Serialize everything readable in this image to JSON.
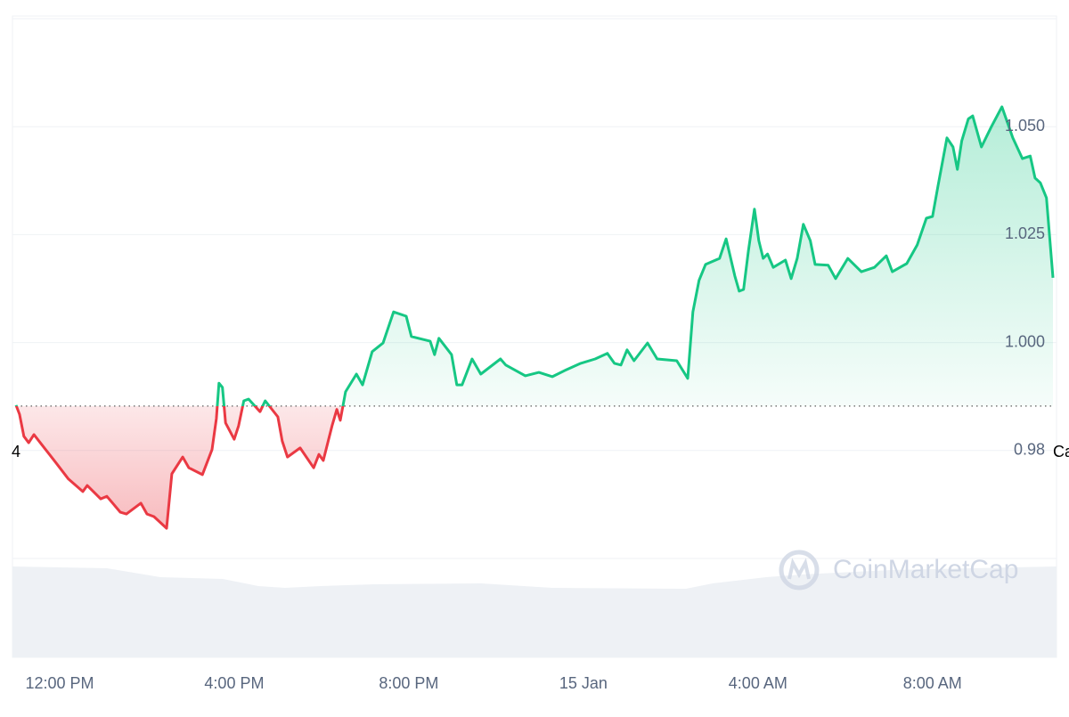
{
  "chart_data": {
    "type": "line",
    "x": [
      -1.0,
      -0.92,
      -0.82,
      -0.71,
      -0.59,
      -0.35,
      -0.08,
      0.2,
      0.53,
      0.63,
      0.94,
      1.08,
      1.39,
      1.53,
      1.86,
      2.0,
      2.16,
      2.45,
      2.57,
      2.82,
      2.96,
      3.27,
      3.49,
      3.59,
      3.65,
      3.73,
      3.8,
      4.0,
      4.1,
      4.22,
      4.33,
      4.59,
      4.71,
      5.0,
      5.1,
      5.22,
      5.51,
      5.82,
      5.94,
      6.04,
      6.24,
      6.35,
      6.43,
      6.55,
      6.8,
      6.94,
      7.16,
      7.41,
      7.65,
      7.94,
      8.06,
      8.49,
      8.59,
      8.69,
      8.98,
      9.1,
      9.22,
      9.45,
      9.65,
      10.1,
      10.22,
      10.67,
      10.98,
      11.29,
      11.61,
      11.94,
      12.27,
      12.55,
      12.71,
      12.86,
      13.0,
      13.16,
      13.47,
      13.69,
      14.14,
      14.39,
      14.51,
      14.65,
      14.8,
      15.12,
      15.27,
      15.47,
      15.57,
      15.67,
      15.78,
      15.92,
      16.02,
      16.12,
      16.22,
      16.35,
      16.63,
      16.76,
      16.9,
      17.04,
      17.2,
      17.31,
      17.61,
      17.78,
      18.06,
      18.37,
      18.67,
      18.94,
      19.08,
      19.41,
      19.65,
      19.86,
      20.0,
      20.12,
      20.33,
      20.47,
      20.57,
      20.67,
      20.82,
      20.92,
      21.12,
      21.35,
      21.59,
      21.84,
      22.06,
      22.24,
      22.35,
      22.47,
      22.61,
      22.76
    ],
    "values": [
      0.9855,
      0.9834,
      0.9783,
      0.9768,
      0.9787,
      0.9756,
      0.9721,
      0.9684,
      0.9655,
      0.9669,
      0.9638,
      0.9644,
      0.9607,
      0.9603,
      0.9628,
      0.9603,
      0.9597,
      0.957,
      0.9696,
      0.9735,
      0.971,
      0.9694,
      0.9752,
      0.9824,
      0.9906,
      0.9896,
      0.9814,
      0.9776,
      0.9807,
      0.9865,
      0.9869,
      0.984,
      0.9865,
      0.9828,
      0.9772,
      0.9735,
      0.9756,
      0.971,
      0.9741,
      0.9727,
      0.9807,
      0.9845,
      0.982,
      0.9886,
      0.9927,
      0.9902,
      0.9979,
      0.9999,
      1.0071,
      1.0061,
      1.0014,
      1.0003,
      0.9972,
      1.001,
      0.9972,
      0.9902,
      0.9902,
      0.9962,
      0.9927,
      0.9962,
      0.9948,
      0.9923,
      0.9931,
      0.9921,
      0.9937,
      0.9952,
      0.9962,
      0.9975,
      0.9952,
      0.9948,
      0.9983,
      0.9958,
      0.9999,
      0.9962,
      0.9958,
      0.9917,
      1.0071,
      1.0144,
      1.0181,
      1.0195,
      1.024,
      1.0154,
      1.0119,
      1.0123,
      1.0212,
      1.0309,
      1.0236,
      1.0195,
      1.0205,
      1.0174,
      1.0191,
      1.0148,
      1.0195,
      1.0274,
      1.0236,
      1.0181,
      1.0179,
      1.0148,
      1.0195,
      1.0164,
      1.0174,
      1.0201,
      1.0164,
      1.0183,
      1.0226,
      1.0288,
      1.0292,
      1.036,
      1.0474,
      1.0453,
      1.0401,
      1.0467,
      1.0518,
      1.0525,
      1.0453,
      1.05,
      1.0546,
      1.0474,
      1.0426,
      1.0432,
      1.0381,
      1.037,
      1.0335,
      1.015
    ],
    "baseline": 0.9853,
    "up_color": "#16c784",
    "down_color": "#ea3943",
    "xlim": [
      -1.0,
      22.76
    ],
    "xticks": [
      {
        "value": 0,
        "label": "12:00 PM"
      },
      {
        "value": 4,
        "label": "4:00 PM"
      },
      {
        "value": 8,
        "label": "8:00 PM"
      },
      {
        "value": 12,
        "label": "15 Jan"
      },
      {
        "value": 16,
        "label": "4:00 AM"
      },
      {
        "value": 20,
        "label": "8:00 AM"
      }
    ],
    "ylim": [
      0.95,
      1.075
    ],
    "yticks": [
      {
        "value": 0.975,
        "label": "0.98"
      },
      {
        "value": 1.0,
        "label": "1.000"
      },
      {
        "value": 1.025,
        "label": "1.025"
      },
      {
        "value": 1.05,
        "label": "1.050"
      }
    ],
    "grid": true,
    "left_label": "4",
    "right_label": "Ca",
    "watermark": "CoinMarketCap"
  }
}
